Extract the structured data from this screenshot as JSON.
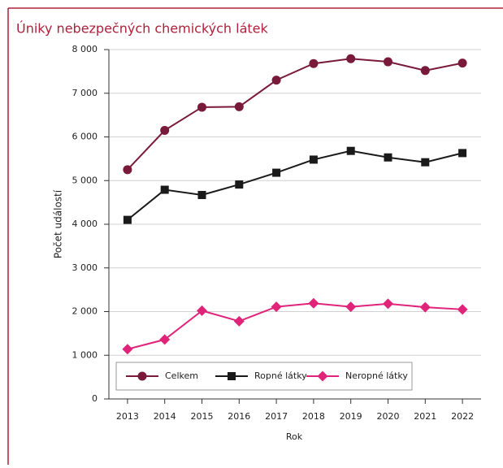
{
  "chart_data": {
    "type": "line",
    "title": "Úniky nebezpečných chemických látek",
    "xlabel": "Rok",
    "ylabel": "Počet událostí",
    "categories": [
      "2013",
      "2014",
      "2015",
      "2016",
      "2017",
      "2018",
      "2019",
      "2020",
      "2021",
      "2022"
    ],
    "series": [
      {
        "name": "Celkem",
        "color": "#7a1a3a",
        "marker": "circle",
        "values": [
          5250,
          6150,
          6680,
          6690,
          7300,
          7680,
          7790,
          7720,
          7520,
          7690
        ]
      },
      {
        "name": "Ropné látky",
        "color": "#1a1a1a",
        "marker": "square",
        "values": [
          4100,
          4790,
          4670,
          4910,
          5180,
          5480,
          5680,
          5530,
          5420,
          5630
        ]
      },
      {
        "name": "Neropné látky",
        "color": "#e0247a",
        "marker": "diamond",
        "values": [
          1140,
          1360,
          2020,
          1780,
          2110,
          2190,
          2110,
          2180,
          2100,
          2050
        ]
      }
    ],
    "ylim": [
      0,
      8000
    ],
    "yticks": [
      0,
      {
        "value": 1000,
        "label": "1 000"
      },
      {
        "value": 2000,
        "label": "2 000"
      },
      {
        "value": 3000,
        "label": "3 000"
      },
      {
        "value": 4000,
        "label": "4 000"
      },
      {
        "value": 5000,
        "label": "5 000"
      },
      {
        "value": 6000,
        "label": "6 000"
      },
      {
        "value": 7000,
        "label": "7 000"
      },
      {
        "value": 8000,
        "label": "8 000"
      }
    ],
    "grid": true,
    "legend": "lower left"
  }
}
